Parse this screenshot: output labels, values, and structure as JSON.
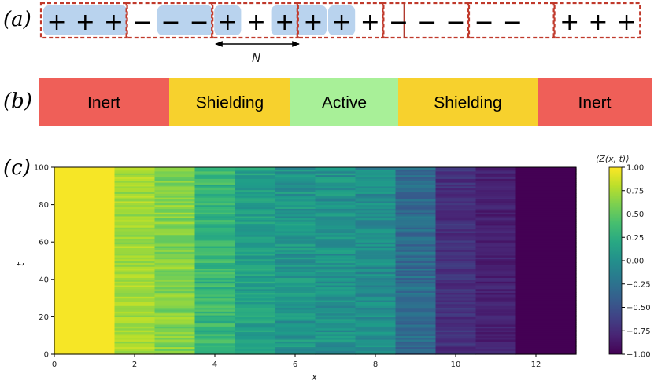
{
  "panels": {
    "a": "(a)",
    "b": "(b)",
    "c": "(c)"
  },
  "spin_chain": {
    "spins": [
      "+",
      "+",
      "+",
      "−",
      "−",
      "−",
      "+",
      "+",
      "+",
      "+",
      "+",
      "+",
      "−",
      "−",
      "−",
      "−",
      "−",
      "+",
      "+",
      "+"
    ],
    "highlight_groups": [
      [
        0,
        2
      ],
      [
        4,
        5
      ],
      [
        6,
        6
      ],
      [
        8,
        9
      ],
      [
        10,
        10
      ]
    ],
    "dashed_blocks": [
      [
        0,
        2
      ],
      [
        3,
        5
      ],
      [
        6,
        8
      ],
      [
        9,
        11
      ],
      [
        12,
        14
      ],
      [
        15,
        17
      ],
      [
        18,
        20
      ]
    ],
    "domain_wall_after_index": 10,
    "colors": {
      "highlight": "#b9d3ee",
      "dashed": "#c0392b",
      "wall": "#b03a2e"
    },
    "arrow_label": "N"
  },
  "regions": [
    {
      "label": "Inert",
      "color": "#ef5f58",
      "weight": 166
    },
    {
      "label": "Shielding",
      "color": "#f7d12d",
      "weight": 154
    },
    {
      "label": "Active",
      "color": "#a8f098",
      "weight": 137
    },
    {
      "label": "Shielding",
      "color": "#f7d12d",
      "weight": 177
    },
    {
      "label": "Inert",
      "color": "#ef5f58",
      "weight": 145
    }
  ],
  "chart_data": {
    "type": "heatmap",
    "title": "",
    "xlabel": "x",
    "ylabel": "t",
    "xlim": [
      0,
      13
    ],
    "ylim": [
      0,
      100
    ],
    "xticks": [
      0,
      2,
      4,
      6,
      8,
      10,
      12
    ],
    "yticks": [
      0,
      20,
      40,
      60,
      80,
      100
    ],
    "columns": [
      {
        "x0": 0,
        "x1": 1.5,
        "mean": 0.98,
        "spread": 0.0
      },
      {
        "x0": 1.5,
        "x1": 2.5,
        "mean": 0.72,
        "spread": 0.12
      },
      {
        "x0": 2.5,
        "x1": 3.5,
        "mean": 0.62,
        "spread": 0.14
      },
      {
        "x0": 3.5,
        "x1": 4.5,
        "mean": 0.32,
        "spread": 0.16
      },
      {
        "x0": 4.5,
        "x1": 5.5,
        "mean": 0.14,
        "spread": 0.14
      },
      {
        "x0": 5.5,
        "x1": 6.5,
        "mean": 0.05,
        "spread": 0.16
      },
      {
        "x0": 6.5,
        "x1": 7.5,
        "mean": 0.02,
        "spread": 0.16
      },
      {
        "x0": 7.5,
        "x1": 8.5,
        "mean": -0.03,
        "spread": 0.16
      },
      {
        "x0": 8.5,
        "x1": 9.5,
        "mean": -0.28,
        "spread": 0.16
      },
      {
        "x0": 9.5,
        "x1": 10.5,
        "mean": -0.72,
        "spread": 0.1
      },
      {
        "x0": 10.5,
        "x1": 11.5,
        "mean": -0.82,
        "spread": 0.08
      },
      {
        "x0": 11.5,
        "x1": 13,
        "mean": -1.0,
        "spread": 0.0
      }
    ],
    "colorbar": {
      "label": "⟨Z(x, t)⟩",
      "range": [
        -1,
        1
      ],
      "ticks": [
        "1.00",
        "0.75",
        "0.50",
        "0.25",
        "0.00",
        "−0.25",
        "−0.50",
        "−0.75",
        "−1.00"
      ]
    }
  }
}
